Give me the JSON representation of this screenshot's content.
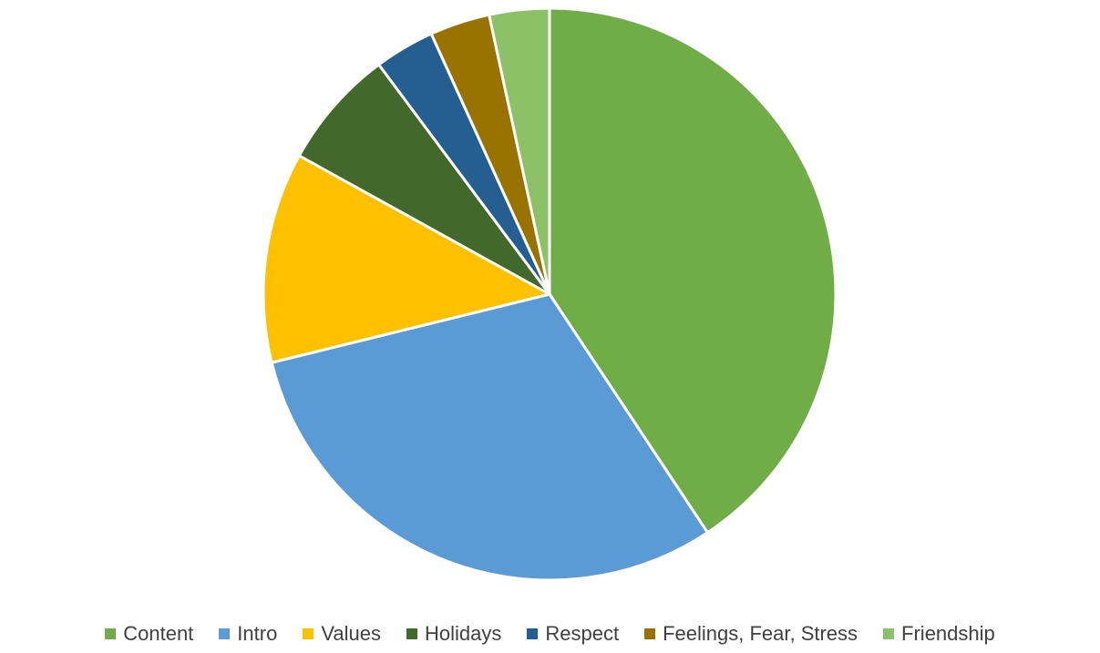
{
  "chart_data": {
    "type": "pie",
    "title": "",
    "start_angle_deg": 0,
    "direction": "clockwise",
    "slices": [
      {
        "label": "Content",
        "value": 41.4,
        "color": "#70AD47"
      },
      {
        "label": "Intro",
        "value": 31.0,
        "color": "#5B9BD5"
      },
      {
        "label": "Values",
        "value": 12.1,
        "color": "#FFC000"
      },
      {
        "label": "Holidays",
        "value": 6.9,
        "color": "#43682B"
      },
      {
        "label": "Respect",
        "value": 3.45,
        "color": "#255E91"
      },
      {
        "label": "Feelings, Fear, Stress",
        "value": 3.45,
        "color": "#997300"
      },
      {
        "label": "Friendship",
        "value": 3.45,
        "color": "#8CC168"
      }
    ],
    "legend_position": "bottom"
  }
}
